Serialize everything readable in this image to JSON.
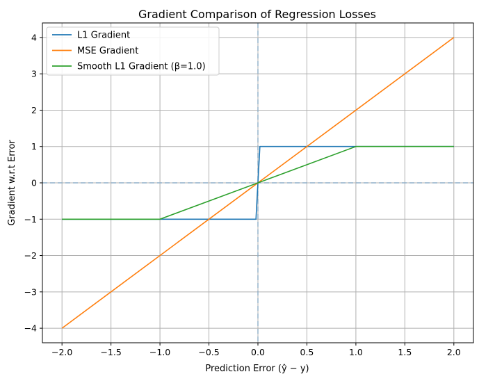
{
  "chart_data": {
    "type": "line",
    "title": "Gradient Comparison of Regression Losses",
    "xlabel": "Prediction Error (ŷ − y)",
    "ylabel": "Gradient w.r.t Error",
    "xlim": [
      -2.2,
      2.2
    ],
    "ylim": [
      -4.4,
      4.4
    ],
    "xticks": [
      -2.0,
      -1.5,
      -1.0,
      -0.5,
      0.0,
      0.5,
      1.0,
      1.5,
      2.0
    ],
    "xtick_labels": [
      "−2.0",
      "−1.5",
      "−1.0",
      "−0.5",
      "0.0",
      "0.5",
      "1.0",
      "1.5",
      "2.0"
    ],
    "yticks": [
      -4,
      -3,
      -2,
      -1,
      0,
      1,
      2,
      3,
      4
    ],
    "ytick_labels": [
      "−4",
      "−3",
      "−2",
      "−1",
      "0",
      "1",
      "2",
      "3",
      "4"
    ],
    "grid": true,
    "legend_position": "top-left",
    "reference_lines": {
      "x": 0,
      "y": 0,
      "style": "dashed",
      "color": "#8fafc8"
    },
    "series": [
      {
        "name": "L1 Gradient",
        "color": "#1f77b4",
        "x": [
          -2.0,
          -0.02,
          0.02,
          2.0
        ],
        "y": [
          -1,
          -1,
          1,
          1
        ]
      },
      {
        "name": "MSE Gradient",
        "color": "#ff7f0e",
        "x": [
          -2.0,
          2.0
        ],
        "y": [
          -4,
          4
        ]
      },
      {
        "name": "Smooth L1 Gradient (β=1.0)",
        "color": "#2ca02c",
        "x": [
          -2.0,
          -1.0,
          1.0,
          2.0
        ],
        "y": [
          -1,
          -1,
          1,
          1
        ]
      }
    ]
  }
}
